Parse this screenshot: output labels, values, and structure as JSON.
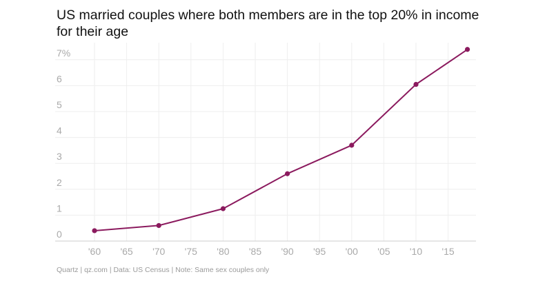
{
  "chart_data": {
    "type": "line",
    "title": "US married couples where both members are in the top 20% in income for their age",
    "xlabel": "",
    "ylabel": "",
    "x_range": [
      1955,
      2018
    ],
    "ylim": [
      0,
      7.5
    ],
    "x_ticks": [
      {
        "value": 1960,
        "label": "'60"
      },
      {
        "value": 1965,
        "label": "'65"
      },
      {
        "value": 1970,
        "label": "'70"
      },
      {
        "value": 1975,
        "label": "'75"
      },
      {
        "value": 1980,
        "label": "'80"
      },
      {
        "value": 1985,
        "label": "'85"
      },
      {
        "value": 1990,
        "label": "'90"
      },
      {
        "value": 1995,
        "label": "'95"
      },
      {
        "value": 2000,
        "label": "'00"
      },
      {
        "value": 2005,
        "label": "'05"
      },
      {
        "value": 2010,
        "label": "'10"
      },
      {
        "value": 2015,
        "label": "'15"
      }
    ],
    "y_ticks": [
      {
        "value": 0,
        "label": "0"
      },
      {
        "value": 1,
        "label": "1"
      },
      {
        "value": 2,
        "label": "2"
      },
      {
        "value": 3,
        "label": "3"
      },
      {
        "value": 4,
        "label": "4"
      },
      {
        "value": 5,
        "label": "5"
      },
      {
        "value": 6,
        "label": "6"
      },
      {
        "value": 7,
        "label": "7%"
      }
    ],
    "grid": true,
    "series": [
      {
        "color": "#8b1a5e",
        "x": [
          1960,
          1970,
          1980,
          1990,
          2000,
          2010,
          2018
        ],
        "values": [
          0.4,
          0.6,
          1.25,
          2.6,
          3.7,
          6.05,
          7.4
        ]
      }
    ]
  },
  "footer": "Quartz | qz.com | Data: US Census | Note: Same sex couples only"
}
